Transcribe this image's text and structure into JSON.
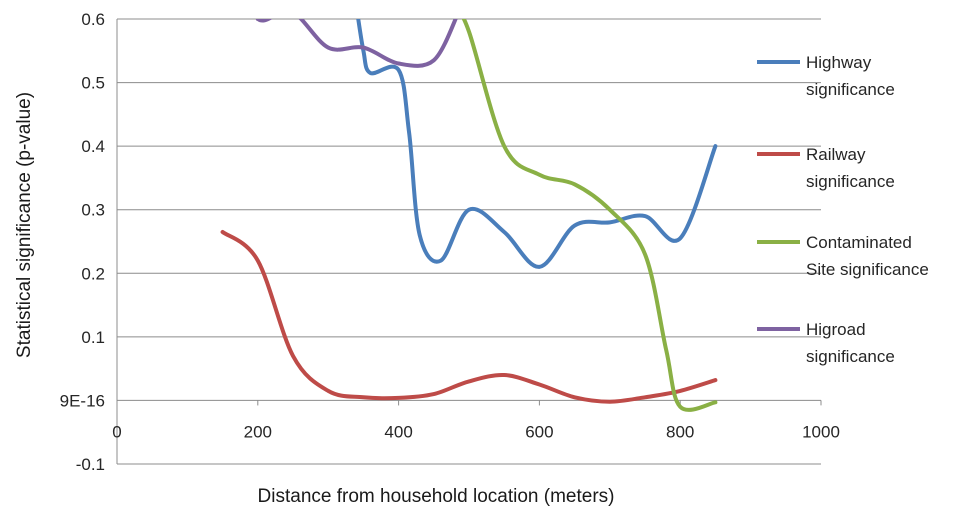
{
  "chart_data": {
    "type": "line",
    "title": "",
    "xlabel": "Distance from household location (meters)",
    "ylabel": "Statistical significance (p-value)",
    "xlim": [
      0,
      1000
    ],
    "ylim": [
      -0.1,
      0.6
    ],
    "xticks": [
      0,
      200,
      400,
      600,
      800,
      1000
    ],
    "xtick_labels": [
      "0",
      "200",
      "400",
      "600",
      "800",
      "1000"
    ],
    "yticks": [
      -0.1,
      0,
      0.1,
      0.2,
      0.3,
      0.4,
      0.5,
      0.6
    ],
    "ytick_labels": [
      "-0.1",
      "9E-16",
      "0.1",
      "0.2",
      "0.3",
      "0.4",
      "0.5",
      "0.6"
    ],
    "grid": "horizontal",
    "legend_position": "right",
    "series": [
      {
        "name": "Highway significance",
        "legend_lines": [
          "Highway",
          "significance"
        ],
        "color": "#4a7ebb",
        "points": [
          [
            340,
            0.62
          ],
          [
            350,
            0.55
          ],
          [
            360,
            0.515
          ],
          [
            400,
            0.52
          ],
          [
            415,
            0.42
          ],
          [
            430,
            0.26
          ],
          [
            460,
            0.22
          ],
          [
            500,
            0.3
          ],
          [
            550,
            0.265
          ],
          [
            600,
            0.21
          ],
          [
            650,
            0.275
          ],
          [
            700,
            0.28
          ],
          [
            750,
            0.29
          ],
          [
            800,
            0.255
          ],
          [
            850,
            0.4
          ]
        ]
      },
      {
        "name": "Railway significance",
        "legend_lines": [
          "Railway",
          "significance"
        ],
        "color": "#be4b48",
        "points": [
          [
            150,
            0.265
          ],
          [
            200,
            0.22
          ],
          [
            250,
            0.07
          ],
          [
            300,
            0.015
          ],
          [
            350,
            0.005
          ],
          [
            400,
            0.004
          ],
          [
            450,
            0.01
          ],
          [
            500,
            0.03
          ],
          [
            550,
            0.04
          ],
          [
            600,
            0.025
          ],
          [
            650,
            0.005
          ],
          [
            700,
            -0.002
          ],
          [
            750,
            0.005
          ],
          [
            800,
            0.015
          ],
          [
            850,
            0.032
          ]
        ]
      },
      {
        "name": "Contaminated Site significance",
        "legend_lines": [
          "Contaminated",
          "Site significance"
        ],
        "color": "#8ab045",
        "points": [
          [
            480,
            0.62
          ],
          [
            500,
            0.58
          ],
          [
            550,
            0.4
          ],
          [
            600,
            0.355
          ],
          [
            650,
            0.34
          ],
          [
            700,
            0.3
          ],
          [
            750,
            0.23
          ],
          [
            780,
            0.08
          ],
          [
            800,
            -0.01
          ],
          [
            850,
            -0.003
          ]
        ]
      },
      {
        "name": "Higroad significance",
        "legend_lines": [
          "Higroad",
          "significance"
        ],
        "color": "#7e62a1",
        "points": [
          [
            200,
            0.6
          ],
          [
            210,
            0.598
          ],
          [
            250,
            0.61
          ],
          [
            300,
            0.555
          ],
          [
            350,
            0.555
          ],
          [
            400,
            0.53
          ],
          [
            450,
            0.535
          ],
          [
            485,
            0.61
          ]
        ]
      }
    ]
  }
}
